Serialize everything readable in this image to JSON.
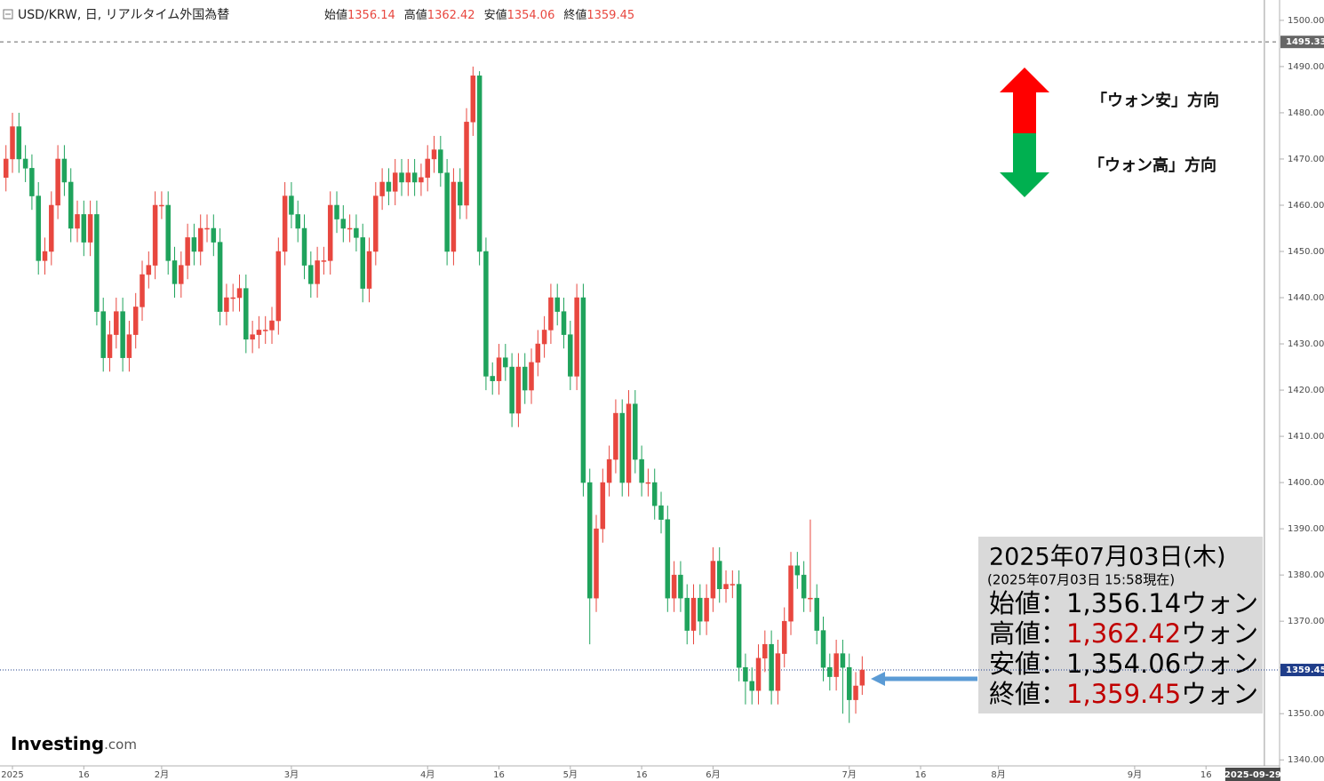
{
  "chart_data": {
    "type": "candlestick",
    "title": "USD/KRW, 日, リアルタイム外国為替",
    "ohlc_legend": [
      {
        "label": "始値",
        "value": 1356.14
      },
      {
        "label": "高値",
        "value": 1362.42
      },
      {
        "label": "安値",
        "value": 1354.06
      },
      {
        "label": "終値",
        "value": 1359.45
      }
    ],
    "x": [
      -1,
      0,
      1,
      2,
      3,
      4,
      5,
      6,
      7,
      8,
      9,
      10,
      11,
      12,
      13,
      14,
      15,
      16,
      17,
      18,
      19,
      20,
      21,
      22,
      23,
      24,
      25,
      26,
      27,
      28,
      29,
      30,
      31,
      32,
      33,
      34,
      35,
      36,
      37,
      38,
      39,
      40,
      41,
      42,
      43,
      44,
      45,
      46,
      47,
      48,
      49,
      50,
      51,
      52,
      53,
      54,
      55,
      56,
      57,
      58,
      59,
      60,
      61,
      62,
      63,
      64,
      65,
      66,
      67,
      68,
      69,
      70,
      71,
      72,
      73,
      74,
      75,
      76,
      77,
      78,
      79,
      80,
      81,
      82,
      83,
      84,
      85,
      86,
      87,
      88,
      89,
      90,
      91,
      92,
      93,
      94,
      95,
      96,
      97,
      98,
      99,
      100,
      101,
      102,
      103,
      104,
      105,
      106,
      107,
      108,
      109,
      110,
      111,
      112,
      113,
      114,
      115,
      116,
      117,
      118,
      119,
      120,
      121,
      122,
      123,
      124,
      125,
      126,
      127,
      128,
      129,
      130,
      131
    ],
    "open": [
      1466,
      1470,
      1477,
      1470,
      1468,
      1462,
      1448,
      1450,
      1460,
      1470,
      1465,
      1455,
      1458,
      1452,
      1458,
      1437,
      1427,
      1432,
      1437,
      1427,
      1432,
      1438,
      1445,
      1447,
      1460,
      1460,
      1448,
      1443,
      1447,
      1453,
      1450,
      1455,
      1455,
      1452,
      1437,
      1440,
      1440,
      1442,
      1431,
      1432,
      1433,
      1433,
      1435,
      1450,
      1462,
      1458,
      1455,
      1447,
      1443,
      1448,
      1448,
      1460,
      1457,
      1455,
      1455,
      1453,
      1442,
      1450,
      1462,
      1465,
      1463,
      1467,
      1465,
      1467,
      1465,
      1466,
      1470,
      1472,
      1467,
      1450,
      1465,
      1460,
      1478,
      1488,
      1450,
      1423,
      1422,
      1427,
      1425,
      1415,
      1425,
      1420,
      1426,
      1430,
      1433,
      1440,
      1437,
      1432,
      1423,
      1440,
      1400,
      1375,
      1390,
      1400,
      1405,
      1415,
      1400,
      1417,
      1405,
      1400,
      1400,
      1395,
      1392,
      1375,
      1380,
      1375,
      1368,
      1375,
      1370,
      1375,
      1383,
      1377,
      1378,
      1378,
      1360,
      1357,
      1355,
      1362,
      1365,
      1355,
      1363,
      1370,
      1382,
      1380,
      1375,
      1375,
      1368,
      1360,
      1358,
      1363,
      1360,
      1353,
      1356.14
    ],
    "high": [
      1473,
      1480,
      1480,
      1473,
      1471,
      1465,
      1453,
      1463,
      1473,
      1473,
      1468,
      1461,
      1461,
      1461,
      1461,
      1440,
      1435,
      1440,
      1440,
      1435,
      1441,
      1448,
      1450,
      1463,
      1463,
      1463,
      1451,
      1450,
      1456,
      1456,
      1458,
      1458,
      1458,
      1455,
      1443,
      1443,
      1445,
      1445,
      1435,
      1436,
      1436,
      1438,
      1453,
      1465,
      1465,
      1461,
      1458,
      1450,
      1451,
      1451,
      1463,
      1463,
      1460,
      1458,
      1458,
      1456,
      1453,
      1465,
      1468,
      1468,
      1470,
      1470,
      1470,
      1470,
      1469,
      1473,
      1475,
      1475,
      1470,
      1468,
      1468,
      1481,
      1490,
      1489,
      1453,
      1426,
      1430,
      1430,
      1428,
      1428,
      1428,
      1429,
      1433,
      1436,
      1443,
      1443,
      1440,
      1435,
      1443,
      1443,
      1403,
      1393,
      1403,
      1408,
      1418,
      1418,
      1420,
      1420,
      1408,
      1403,
      1403,
      1398,
      1395,
      1383,
      1383,
      1378,
      1378,
      1378,
      1378,
      1386,
      1386,
      1381,
      1381,
      1381,
      1363,
      1360,
      1365,
      1368,
      1368,
      1366,
      1373,
      1385,
      1385,
      1383,
      1392,
      1378,
      1371,
      1363,
      1366,
      1366,
      1363,
      1359,
      1362.42
    ],
    "low": [
      1463,
      1467,
      1467,
      1465,
      1459,
      1445,
      1445,
      1447,
      1457,
      1462,
      1452,
      1452,
      1449,
      1449,
      1434,
      1424,
      1424,
      1429,
      1424,
      1424,
      1429,
      1435,
      1442,
      1444,
      1457,
      1445,
      1440,
      1440,
      1444,
      1447,
      1447,
      1452,
      1449,
      1434,
      1434,
      1437,
      1437,
      1428,
      1428,
      1429,
      1430,
      1430,
      1432,
      1447,
      1455,
      1452,
      1444,
      1440,
      1440,
      1445,
      1445,
      1454,
      1452,
      1452,
      1450,
      1439,
      1439,
      1447,
      1459,
      1460,
      1460,
      1462,
      1462,
      1462,
      1462,
      1463,
      1467,
      1464,
      1447,
      1447,
      1457,
      1457,
      1475,
      1447,
      1420,
      1419,
      1419,
      1422,
      1412,
      1412,
      1417,
      1417,
      1423,
      1427,
      1430,
      1434,
      1429,
      1420,
      1420,
      1397,
      1365,
      1372,
      1387,
      1397,
      1402,
      1397,
      1397,
      1402,
      1397,
      1397,
      1392,
      1389,
      1372,
      1372,
      1372,
      1365,
      1365,
      1367,
      1367,
      1372,
      1374,
      1374,
      1375,
      1357,
      1352,
      1352,
      1352,
      1359,
      1352,
      1352,
      1360,
      1367,
      1377,
      1372,
      1372,
      1365,
      1357,
      1355,
      1355,
      1350,
      1348,
      1350,
      1354.06
    ],
    "close": [
      1470,
      1477,
      1470,
      1468,
      1462,
      1448,
      1450,
      1460,
      1470,
      1465,
      1455,
      1458,
      1452,
      1458,
      1437,
      1427,
      1432,
      1437,
      1427,
      1432,
      1438,
      1445,
      1447,
      1460,
      1460,
      1448,
      1443,
      1447,
      1453,
      1450,
      1455,
      1455,
      1452,
      1437,
      1440,
      1440,
      1442,
      1431,
      1432,
      1433,
      1433,
      1435,
      1450,
      1462,
      1458,
      1455,
      1447,
      1443,
      1448,
      1448,
      1460,
      1457,
      1455,
      1455,
      1453,
      1442,
      1450,
      1462,
      1465,
      1463,
      1467,
      1465,
      1467,
      1465,
      1466,
      1470,
      1472,
      1467,
      1450,
      1465,
      1460,
      1478,
      1488,
      1450,
      1423,
      1422,
      1427,
      1425,
      1415,
      1425,
      1420,
      1426,
      1430,
      1433,
      1440,
      1437,
      1432,
      1423,
      1440,
      1400,
      1375,
      1390,
      1400,
      1405,
      1415,
      1400,
      1417,
      1405,
      1400,
      1400,
      1395,
      1392,
      1375,
      1380,
      1375,
      1368,
      1375,
      1370,
      1375,
      1383,
      1377,
      1378,
      1378,
      1360,
      1357,
      1355,
      1362,
      1365,
      1355,
      1363,
      1370,
      1382,
      1380,
      1375,
      1375,
      1368,
      1360,
      1358,
      1363,
      1360,
      1353,
      1356,
      1359.45
    ],
    "up_color": "#e8473f",
    "down_color": "#1fa35c",
    "xlim": [
      -1.92,
      195.34
    ],
    "ylim": [
      1338.7,
      1504.4
    ],
    "xticks": [
      {
        "value": 0,
        "label": "2025"
      },
      {
        "value": 11,
        "label": "16"
      },
      {
        "value": 23,
        "label": "2月"
      },
      {
        "value": 43,
        "label": "3月"
      },
      {
        "value": 64,
        "label": "4月"
      },
      {
        "value": 75,
        "label": "16"
      },
      {
        "value": 86,
        "label": "5月"
      },
      {
        "value": 97,
        "label": "16"
      },
      {
        "value": 108,
        "label": "6月"
      },
      {
        "value": 129,
        "label": "7月"
      },
      {
        "value": 140,
        "label": "16"
      },
      {
        "value": 152,
        "label": "8月"
      },
      {
        "value": 173,
        "label": "9月"
      },
      {
        "value": 184,
        "label": "16"
      }
    ],
    "yticks": [
      {
        "value": 1340,
        "label": "1340.00"
      },
      {
        "value": 1350,
        "label": "1350.00"
      },
      {
        "value": 1360,
        "label": "1360.00"
      },
      {
        "value": 1370,
        "label": "1370.00"
      },
      {
        "value": 1380,
        "label": "1380.00"
      },
      {
        "value": 1390,
        "label": "1390.00"
      },
      {
        "value": 1400,
        "label": "1400.00"
      },
      {
        "value": 1410,
        "label": "1410.00"
      },
      {
        "value": 1420,
        "label": "1420.00"
      },
      {
        "value": 1430,
        "label": "1430.00"
      },
      {
        "value": 1440,
        "label": "1440.00"
      },
      {
        "value": 1450,
        "label": "1450.00"
      },
      {
        "value": 1460,
        "label": "1460.00"
      },
      {
        "value": 1470,
        "label": "1470.00"
      },
      {
        "value": 1480,
        "label": "1480.00"
      },
      {
        "value": 1490,
        "label": "1490.00"
      },
      {
        "value": 1500,
        "label": "1500.00"
      }
    ],
    "price_lines": [
      {
        "value": 1495.33,
        "color": "#666666",
        "dash": "4 4"
      },
      {
        "value": 1359.45,
        "color": "#1f3d8a",
        "dash": "1 2"
      }
    ],
    "x_marker": {
      "value": 193,
      "label": "2025-09-29"
    },
    "annotations": [
      "「ウォン安」方向",
      "「ウォン高」方向"
    ],
    "info_box": {
      "date": "2025年07月03日(木)",
      "asof": "(2025年07月03日 15:58現在)",
      "separator": "：",
      "unit": "ウォン",
      "rows": [
        {
          "name": "始値",
          "value": 1356.14,
          "value_label": "1,356.14",
          "color": "#000000"
        },
        {
          "name": "高値",
          "value": 1362.42,
          "value_label": "1,362.42",
          "color": "#c00000"
        },
        {
          "name": "安値",
          "value": 1354.06,
          "value_label": "1,354.06",
          "color": "#000000"
        },
        {
          "name": "終値",
          "value": 1359.45,
          "value_label": "1,359.45",
          "color": "#c00000"
        }
      ]
    },
    "logo": {
      "name": "Investing",
      "suffix": ".com"
    }
  }
}
